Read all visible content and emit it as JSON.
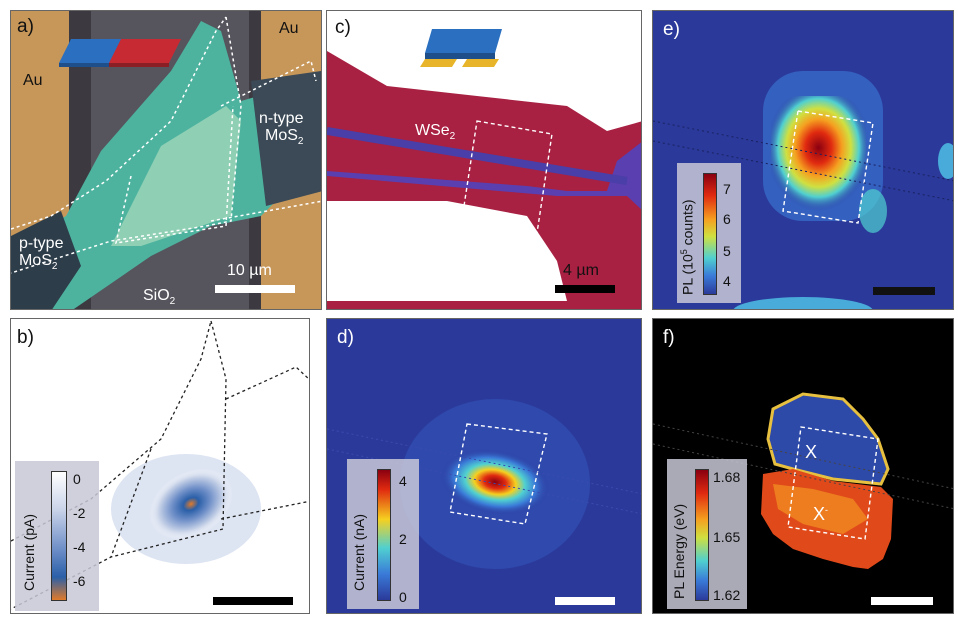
{
  "panels": {
    "a": {
      "label": "a)",
      "au_left": "Au",
      "au_right": "Au",
      "ntype_line1": "n-type",
      "ntype_line2": "MoS",
      "ptype_line1": "p-type",
      "ptype_line2": "MoS",
      "sub2": "2",
      "sio2": "SiO",
      "scale": "10 µm"
    },
    "b": {
      "label": "b)",
      "colorbar_title": "Current (pA)",
      "ticks": [
        "0",
        "-2",
        "-4",
        "-6"
      ]
    },
    "c": {
      "label": "c)",
      "wse2": "WSe",
      "sub2": "2",
      "scale": "4 µm"
    },
    "d": {
      "label": "d)",
      "colorbar_title": "Current (nA)",
      "ticks": [
        "4",
        "2",
        "0"
      ]
    },
    "e": {
      "label": "e)",
      "colorbar_title_pre": "PL (10",
      "colorbar_title_sup": "5",
      "colorbar_title_post": " counts)",
      "ticks": [
        "7",
        "6",
        "5",
        "4"
      ]
    },
    "f": {
      "label": "f)",
      "colorbar_title": "PL Energy (eV)",
      "ticks": [
        "1.68",
        "1.65",
        "1.62"
      ],
      "x_label_top": "X",
      "x_label_bottom": "X",
      "x_label_bottom_sup": "-"
    }
  },
  "colors": {
    "au": "#c99a55",
    "sio2": "#55535a",
    "mos2": "#4fb5a0",
    "jet_low": "#2b3a9a",
    "wse2_red": "#b8284a"
  }
}
